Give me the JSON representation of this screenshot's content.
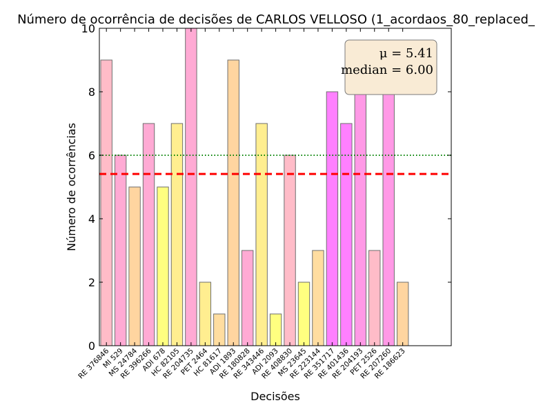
{
  "chart_data": {
    "type": "bar",
    "title": "Número de ocorrência de decisões de CARLOS VELLOSO (1_acordaos_80_replaced_",
    "xlabel": "Decisões",
    "ylabel": "Número de ocorrências",
    "ylim": [
      0,
      10
    ],
    "yticks": [
      0,
      2,
      4,
      6,
      8,
      10
    ],
    "grid": false,
    "categories": [
      "RE 376846",
      "MI 529",
      "MS 24784",
      "RE 396266",
      "ADI 678",
      "HC 82105",
      "RE 204735",
      "PET 2464",
      "HC 81617",
      "ADI 1893",
      "RE 180828",
      "RE 343446",
      "ADI 2093",
      "RE 408830",
      "MS 23645",
      "RE 223144",
      "RE 351717",
      "RE 401436",
      "RE 204193",
      "PET 2526",
      "RE 207260",
      "RE 186623"
    ],
    "values": [
      9,
      6,
      5,
      7,
      5,
      7,
      10,
      2,
      1,
      9,
      3,
      7,
      1,
      6,
      2,
      3,
      8,
      7,
      8,
      3,
      8,
      2
    ],
    "bar_colors": [
      "#ffbcc8",
      "#ffaad4",
      "#ffd5a0",
      "#ffaad4",
      "#ffff80",
      "#ffee90",
      "#ffaad4",
      "#ffee90",
      "#ffdda0",
      "#ffd5a0",
      "#ffaad4",
      "#ffee90",
      "#ffff80",
      "#ffbcc8",
      "#ffff80",
      "#ffdda0",
      "#ff80ff",
      "#ff80ff",
      "#ff99e6",
      "#ffbcc8",
      "#ff99e6",
      "#ffd5a0"
    ],
    "mean": 5.41,
    "median": 6.0,
    "mean_line_color": "#ff0000",
    "median_line_color": "#008000",
    "legend_position": "top-right",
    "stats_box": {
      "line1": "μ = 5.41",
      "line2": "median = 6.00",
      "background": "#f9ebd5"
    }
  }
}
